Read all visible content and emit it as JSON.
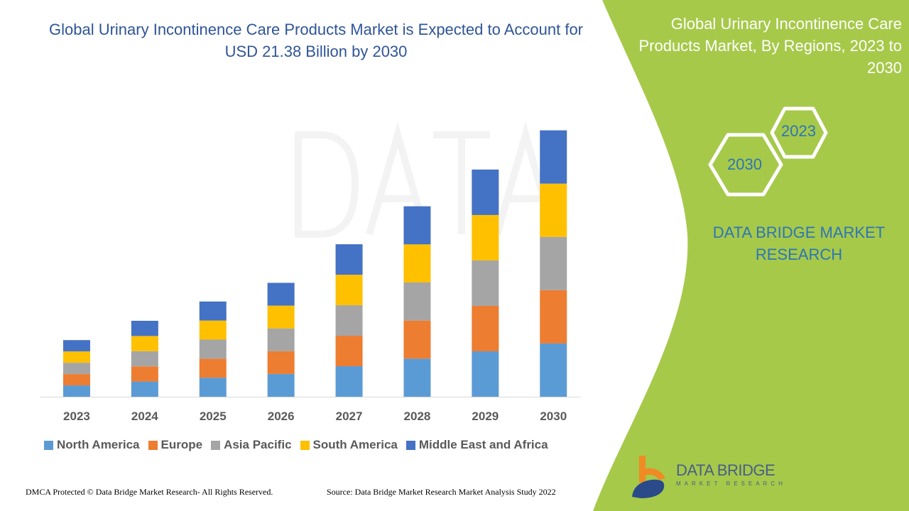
{
  "title": "Global Urinary Incontinence Care Products Market is Expected to Account for USD 21.38 Billion by 2030",
  "side_panel": {
    "title": "Global Urinary Incontinence Care Products Market, By Regions, 2023 to 2030",
    "hex_2023": "2023",
    "hex_2030": "2030",
    "brand": "DATA BRIDGE MARKET RESEARCH",
    "color": "#a6c94a"
  },
  "logo": {
    "name": "DATA BRIDGE",
    "sub": "MARKET RESEARCH"
  },
  "footer": {
    "copyright": "DMCA Protected © Data Bridge Market Research- All Rights Reserved.",
    "source": "Source: Data Bridge Market Research Market Analysis Study 2022"
  },
  "chart_data": {
    "type": "bar",
    "stacked": true,
    "categories": [
      "2023",
      "2024",
      "2025",
      "2026",
      "2027",
      "2028",
      "2029",
      "2030"
    ],
    "series": [
      {
        "name": "North America",
        "color": "#5b9bd5",
        "values": [
          0.91,
          1.22,
          1.53,
          1.83,
          2.45,
          3.06,
          3.65,
          4.28
        ]
      },
      {
        "name": "Europe",
        "color": "#ed7d31",
        "values": [
          0.91,
          1.22,
          1.53,
          1.83,
          2.45,
          3.06,
          3.65,
          4.28
        ]
      },
      {
        "name": "Asia Pacific",
        "color": "#a5a5a5",
        "values": [
          0.91,
          1.22,
          1.53,
          1.83,
          2.45,
          3.06,
          3.65,
          4.28
        ]
      },
      {
        "name": "South America",
        "color": "#ffc000",
        "values": [
          0.91,
          1.22,
          1.53,
          1.83,
          2.45,
          3.06,
          3.65,
          4.28
        ]
      },
      {
        "name": "Middle East and Africa",
        "color": "#4472c4",
        "values": [
          0.91,
          1.22,
          1.53,
          1.83,
          2.45,
          3.06,
          3.65,
          4.28
        ]
      }
    ],
    "ylim": [
      0,
      21.4
    ],
    "grid": false,
    "legend": "bottom"
  }
}
